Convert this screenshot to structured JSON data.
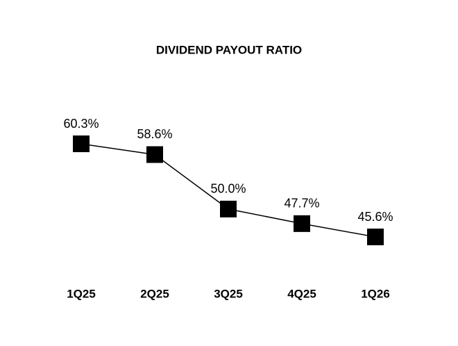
{
  "chart_data": {
    "type": "line",
    "title": "DIVIDEND PAYOUT RATIO",
    "categories": [
      "1Q25",
      "2Q25",
      "3Q25",
      "4Q25",
      "1Q26"
    ],
    "values": [
      60.3,
      58.6,
      50.0,
      47.7,
      45.6
    ],
    "value_labels": [
      "60.3%",
      "58.6%",
      "50.0%",
      "47.7%",
      "45.6%"
    ],
    "color": "#000000"
  }
}
